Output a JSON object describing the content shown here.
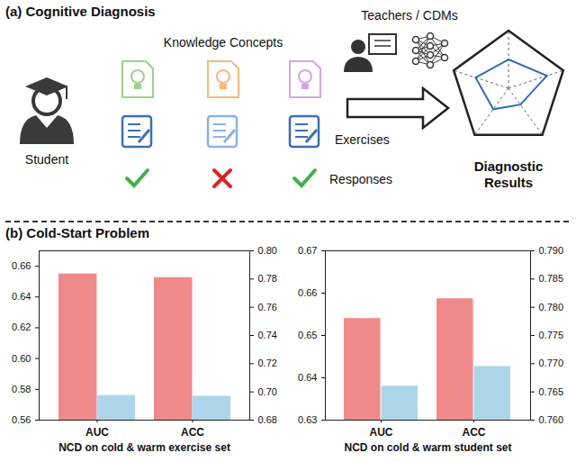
{
  "diagram": {
    "title": "(a) Cognitive Diagnosis",
    "student": "Student",
    "knowledge_concepts": "Knowledge Concepts",
    "exercises": "Exercises",
    "responses_label": "Responses",
    "responses": [
      true,
      false,
      true
    ],
    "diagnosers": "Teachers / CDMs",
    "output": "Diagnostic Results"
  },
  "panel_b_title": "(b) Cold-Start Problem",
  "chart_data": [
    {
      "type": "bar",
      "xlabel": "NCD on cold & warm exercise set",
      "categories": [
        "AUC",
        "ACC"
      ],
      "series": [
        {
          "color": "#f08a8a",
          "values": [
            0.655,
            null
          ]
        },
        {
          "color": "#f08a8a",
          "values": [
            null,
            0.781
          ],
          "axis": "y2"
        },
        {
          "color": "#aed6ea",
          "values": [
            0.576,
            null
          ]
        },
        {
          "color": "#aed6ea",
          "values": [
            null,
            0.697
          ],
          "axis": "y2"
        }
      ],
      "ylim": [
        0.56,
        0.67
      ],
      "yticks": [
        0.56,
        0.58,
        {
          "value": 0.6,
          "label": "0.60"
        },
        0.62,
        0.64,
        0.66
      ],
      "y2lim": [
        0.68,
        0.8
      ],
      "y2ticks": [
        0.68,
        {
          "value": 0.7,
          "label": "0.70"
        },
        0.72,
        0.74,
        0.76,
        0.78,
        {
          "value": 0.8,
          "label": "0.80"
        }
      ]
    },
    {
      "type": "bar",
      "xlabel": "NCD on cold & warm student set",
      "categories": [
        "AUC",
        "ACC"
      ],
      "series": [
        {
          "color": "#f08a8a",
          "values": [
            0.654,
            null
          ]
        },
        {
          "color": "#f08a8a",
          "values": [
            null,
            0.7815
          ],
          "axis": "y2"
        },
        {
          "color": "#aed6ea",
          "values": [
            0.638,
            null
          ]
        },
        {
          "color": "#aed6ea",
          "values": [
            null,
            0.7695
          ],
          "axis": "y2"
        }
      ],
      "ylim": [
        0.63,
        0.67
      ],
      "yticks": [
        0.63,
        0.64,
        0.65,
        0.66,
        {
          "value": 0.67,
          "label": "0.67"
        }
      ],
      "y2lim": [
        0.76,
        0.79
      ],
      "y2ticks": [
        {
          "value": 0.76,
          "label": "0.760"
        },
        0.765,
        {
          "value": 0.77,
          "label": "0.770"
        },
        0.775,
        {
          "value": 0.78,
          "label": "0.780"
        },
        0.785,
        {
          "value": 0.79,
          "label": "0.790"
        }
      ]
    }
  ]
}
